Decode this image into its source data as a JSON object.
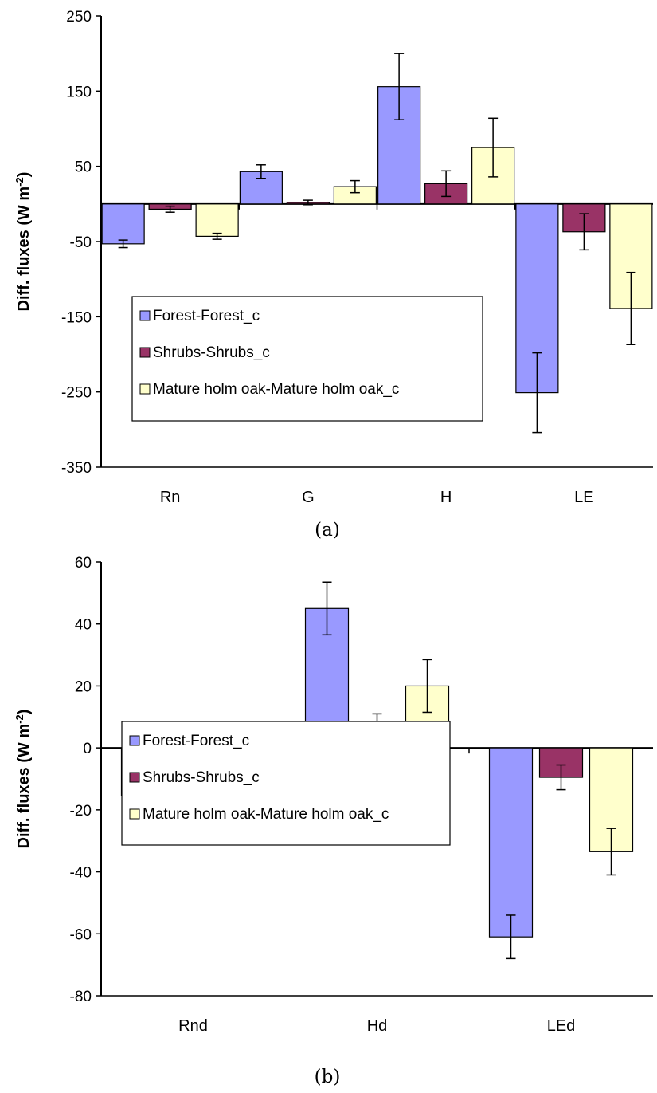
{
  "chart_data": [
    {
      "type": "bar",
      "panel_label": "(a)",
      "categories": [
        "Rn",
        "G",
        "H",
        "LE"
      ],
      "ylabel": "Diff. fluxes (W m-2)",
      "ylabel_parts": [
        "Diff. fluxes (W m",
        "-2",
        ")"
      ],
      "ylim": [
        -350,
        250
      ],
      "yticks": [
        -350,
        -250,
        -150,
        -50,
        50,
        150,
        250
      ],
      "series": [
        {
          "name": "Forest-Forest_c",
          "color": "#9999ff",
          "values": [
            -53,
            43,
            156,
            -251
          ],
          "errors": [
            5,
            9,
            44,
            53
          ]
        },
        {
          "name": "Shrubs-Shrubs_c",
          "color": "#993366",
          "values": [
            -7,
            2,
            27,
            -37
          ],
          "errors": [
            4,
            3,
            17,
            24
          ]
        },
        {
          "name": "Mature holm oak-Mature holm oak_c",
          "color": "#ffffcc",
          "values": [
            -43,
            23,
            75,
            -139
          ],
          "errors": [
            4,
            8,
            39,
            48
          ]
        }
      ],
      "legend": "inside-bottom-left",
      "grid": false
    },
    {
      "type": "bar",
      "panel_label": "(b)",
      "categories": [
        "Rnd",
        "Hd",
        "LEd"
      ],
      "ylabel": "Diff. fluxes (W m-2)",
      "ylabel_parts": [
        "Diff. fluxes (W m",
        "-2",
        ")"
      ],
      "ylim": [
        -80,
        60
      ],
      "yticks": [
        -80,
        -60,
        -40,
        -20,
        0,
        20,
        40,
        60
      ],
      "series": [
        {
          "name": "Forest-Forest_c",
          "color": "#9999ff",
          "values": [
            -15.5,
            45,
            -61
          ],
          "errors": [
            2.5,
            8.5,
            7
          ]
        },
        {
          "name": "Shrubs-Shrubs_c",
          "color": "#993366",
          "values": [
            -2.5,
            7.5,
            -9.5
          ],
          "errors": [
            1,
            3.5,
            4
          ]
        },
        {
          "name": "Mature holm oak-Mature holm oak_c",
          "color": "#ffffcc",
          "values": [
            -13,
            20,
            -33.5
          ],
          "errors": [
            1.5,
            8.5,
            7.5
          ]
        }
      ],
      "legend": "inside-bottom-left",
      "grid": false
    }
  ]
}
